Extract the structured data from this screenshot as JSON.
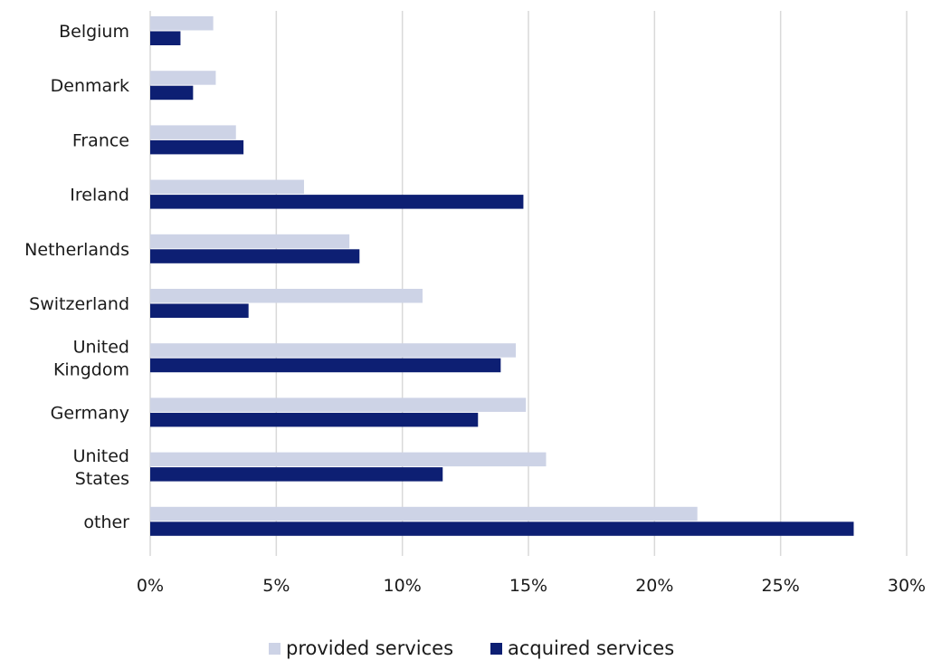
{
  "chart_data": {
    "type": "bar",
    "orientation": "horizontal",
    "categories": [
      "Belgium",
      "Denmark",
      "France",
      "Ireland",
      "Netherlands",
      "Switzerland",
      "United Kingdom",
      "Germany",
      "United States",
      "other"
    ],
    "category_lines": [
      [
        "Belgium"
      ],
      [
        "Denmark"
      ],
      [
        "France"
      ],
      [
        "Ireland"
      ],
      [
        "Netherlands"
      ],
      [
        "Switzerland"
      ],
      [
        "United",
        "Kingdom"
      ],
      [
        "Germany"
      ],
      [
        "United",
        "States"
      ],
      [
        "other"
      ]
    ],
    "series": [
      {
        "name": "provided services",
        "color": "#cdd3e6",
        "values": [
          2.5,
          2.6,
          3.4,
          6.1,
          7.9,
          10.8,
          14.5,
          14.9,
          15.7,
          21.7
        ]
      },
      {
        "name": "acquired services",
        "color": "#0d1f73",
        "values": [
          1.2,
          1.7,
          3.7,
          14.8,
          8.3,
          3.9,
          13.9,
          13.0,
          11.6,
          27.9
        ]
      }
    ],
    "xlim": [
      0,
      30
    ],
    "xticks": [
      0,
      5,
      10,
      15,
      20,
      25,
      30
    ],
    "xtick_labels": [
      "0%",
      "5%",
      "10%",
      "15%",
      "20%",
      "25%",
      "30%"
    ],
    "grid": "vertical",
    "legend": "bottom",
    "title": "",
    "xlabel": "",
    "ylabel": ""
  }
}
